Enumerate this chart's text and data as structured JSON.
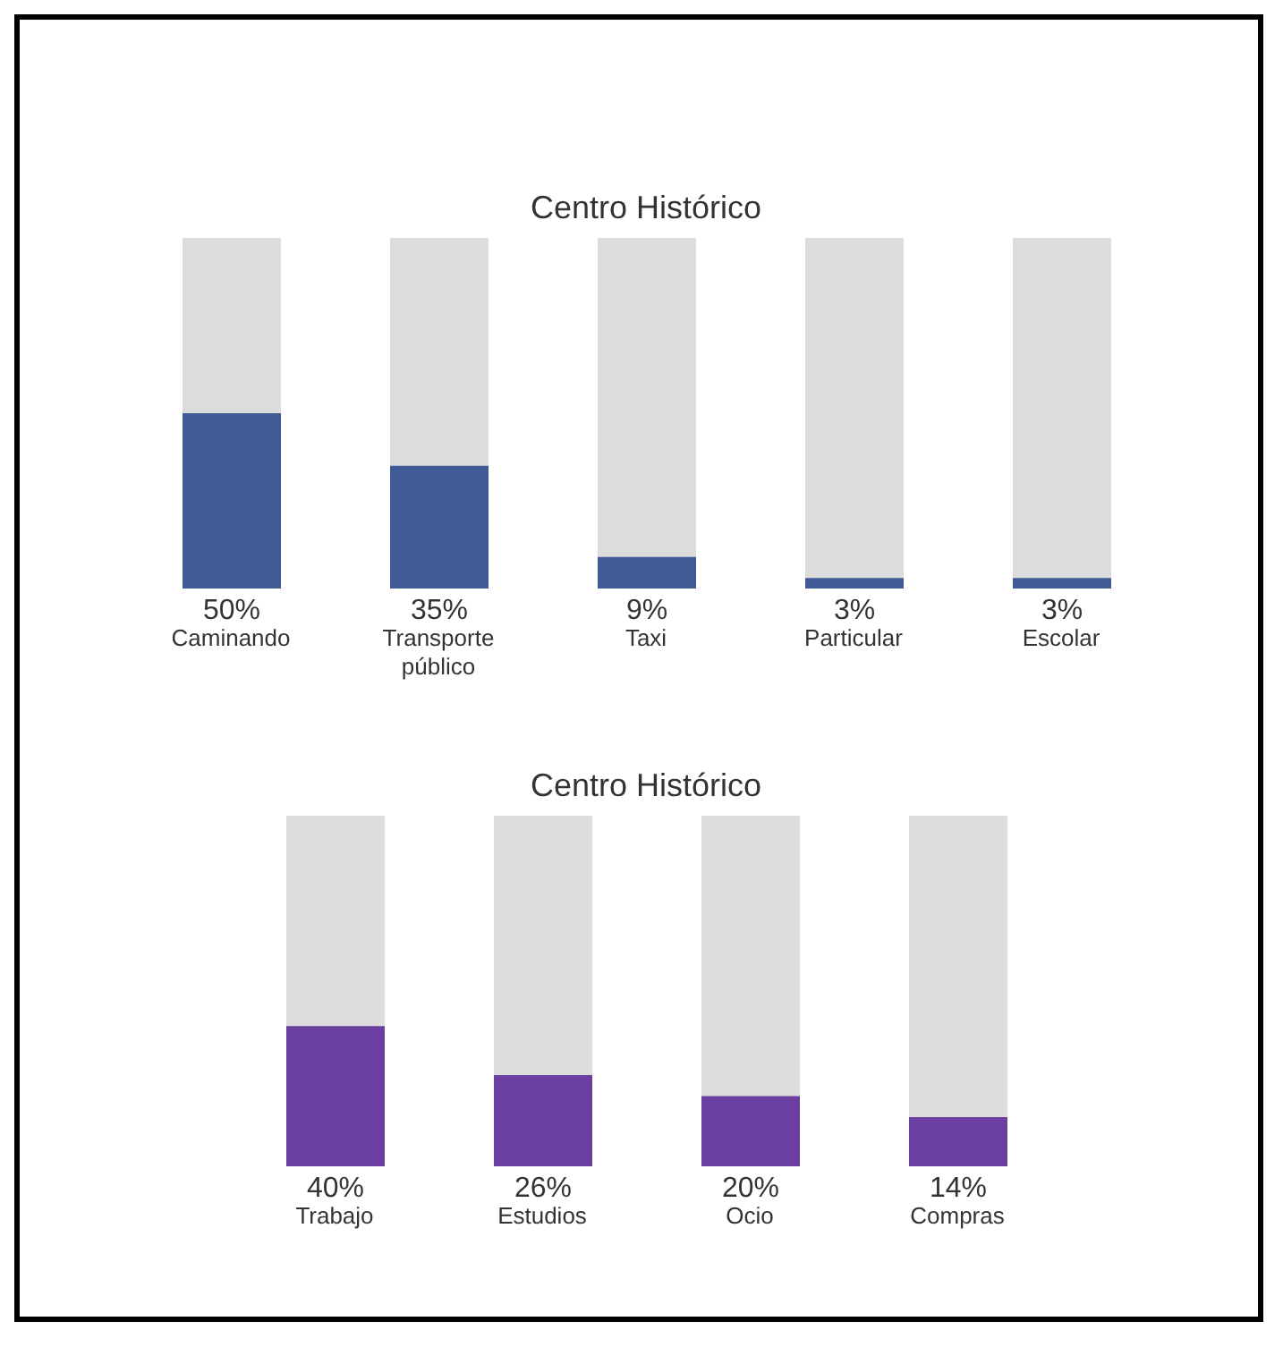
{
  "chart_data": [
    {
      "type": "bar",
      "title": "Centro Histórico",
      "categories": [
        "Caminando",
        "Transporte público",
        "Taxi",
        "Particular",
        "Escolar"
      ],
      "values": [
        50,
        35,
        9,
        3,
        3
      ],
      "value_labels": [
        "50%",
        "35%",
        "9%",
        "3%",
        "3%"
      ],
      "color": "#3f5a94",
      "ylim": [
        0,
        100
      ],
      "tick_labels": "x"
    },
    {
      "type": "bar",
      "title": "Centro Histórico",
      "categories": [
        "Trabajo",
        "Estudios",
        "Ocio",
        "Compras"
      ],
      "values": [
        40,
        26,
        20,
        14
      ],
      "value_labels": [
        "40%",
        "26%",
        "20%",
        "14%"
      ],
      "color": "#6b3fa0",
      "ylim": [
        0,
        100
      ],
      "tick_labels": "x"
    }
  ]
}
